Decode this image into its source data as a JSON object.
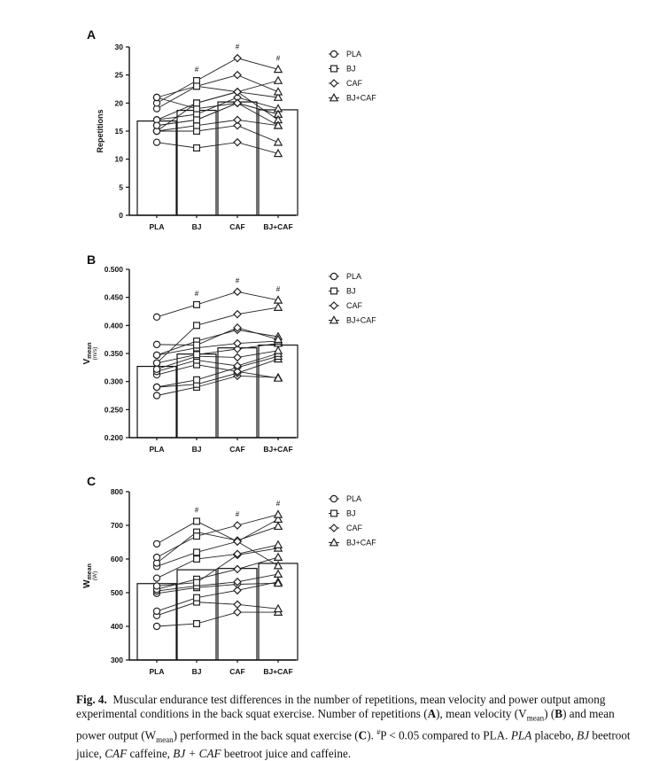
{
  "legend": {
    "PLA": "PLA",
    "BJ": "BJ",
    "CAF": "CAF",
    "BJCAF": "BJ+CAF"
  },
  "caption": {
    "fig_label": "Fig. 4",
    "p1": "Muscular endurance test differences in the number of repetitions, mean velocity and power output among experimental conditions in the back squat exercise. Number of repetitions (",
    "p2": "), mean velocity (V",
    "p3": ") (",
    "p4": ") and mean power output (W",
    "p5": ") performed in the back squat exercise (",
    "p6": "). ",
    "hash": "#",
    "p7": "P < 0.05 compared to PLA. ",
    "pla": "PLA",
    "p8": " placebo, ",
    "bj": "BJ",
    "p9": " beetroot juice, ",
    "caf": "CAF",
    "p10": " caffeine, ",
    "bjcaf": "BJ + CAF",
    "p11": " beetroot juice and caffeine.",
    "A": "A",
    "B": "B",
    "C": "C",
    "mean": "mean"
  },
  "chart_data": [
    {
      "type": "bar",
      "panel": "A",
      "categories": [
        "PLA",
        "BJ",
        "CAF",
        "BJ+CAF"
      ],
      "values": [
        16.8,
        18.7,
        20.2,
        18.8
      ],
      "ylabel": "Repetitions",
      "ylim": [
        0,
        30
      ],
      "yticks": [
        0,
        5,
        10,
        15,
        20,
        25,
        30
      ],
      "significance": [
        "",
        "#",
        "#",
        "#"
      ],
      "individual": [
        [
          13,
          12,
          13,
          11
        ],
        [
          15,
          15,
          16,
          13
        ],
        [
          15,
          16,
          17,
          16
        ],
        [
          16,
          17,
          20,
          18
        ],
        [
          17,
          18,
          21,
          19
        ],
        [
          17,
          20,
          22,
          21
        ],
        [
          19,
          23,
          25,
          22
        ],
        [
          20,
          24,
          28,
          26
        ],
        [
          21,
          23,
          22,
          24
        ],
        [
          21,
          19,
          20,
          18
        ],
        [
          15,
          20,
          22,
          17
        ],
        [
          16,
          17,
          20,
          16
        ]
      ]
    },
    {
      "type": "bar",
      "panel": "B",
      "categories": [
        "PLA",
        "BJ",
        "CAF",
        "BJ+CAF"
      ],
      "values": [
        0.327,
        0.349,
        0.36,
        0.365
      ],
      "ylabel": "V",
      "ylabel_sub": "mean",
      "yunit": "(m/s)",
      "ylim": [
        0.2,
        0.5
      ],
      "yticks": [
        "0.200",
        "0.250",
        "0.300",
        "0.350",
        "0.400",
        "0.450",
        "0.500"
      ],
      "significance": [
        "",
        "#",
        "#",
        "#"
      ],
      "individual": [
        [
          0.275,
          0.29,
          0.31,
          0.307
        ],
        [
          0.29,
          0.295,
          0.315,
          0.34
        ],
        [
          0.29,
          0.303,
          0.325,
          0.345
        ],
        [
          0.312,
          0.33,
          0.318,
          0.306
        ],
        [
          0.318,
          0.338,
          0.328,
          0.35
        ],
        [
          0.322,
          0.345,
          0.343,
          0.355
        ],
        [
          0.333,
          0.348,
          0.358,
          0.368
        ],
        [
          0.347,
          0.36,
          0.368,
          0.372
        ],
        [
          0.347,
          0.372,
          0.392,
          0.38
        ],
        [
          0.366,
          0.365,
          0.396,
          0.375
        ],
        [
          0.415,
          0.437,
          0.46,
          0.445
        ],
        [
          0.333,
          0.4,
          0.42,
          0.432
        ]
      ]
    },
    {
      "type": "bar",
      "panel": "C",
      "categories": [
        "PLA",
        "BJ",
        "CAF",
        "BJ+CAF"
      ],
      "values": [
        527,
        568,
        572,
        587
      ],
      "ylabel": "W",
      "ylabel_sub": "mean",
      "yunit": "(W)",
      "ylim": [
        300,
        800
      ],
      "yticks": [
        300,
        400,
        500,
        600,
        700,
        800
      ],
      "significance": [
        "",
        "#",
        "#",
        "#"
      ],
      "individual": [
        [
          400,
          408,
          442,
          442
        ],
        [
          432,
          472,
          465,
          452
        ],
        [
          445,
          485,
          507,
          532
        ],
        [
          498,
          515,
          525,
          528
        ],
        [
          505,
          520,
          532,
          555
        ],
        [
          510,
          540,
          570,
          605
        ],
        [
          520,
          530,
          612,
          632
        ],
        [
          543,
          600,
          615,
          642
        ],
        [
          578,
          620,
          652,
          718
        ],
        [
          588,
          680,
          655,
          697
        ],
        [
          605,
          668,
          700,
          732
        ],
        [
          645,
          712,
          652,
          580
        ]
      ]
    }
  ]
}
